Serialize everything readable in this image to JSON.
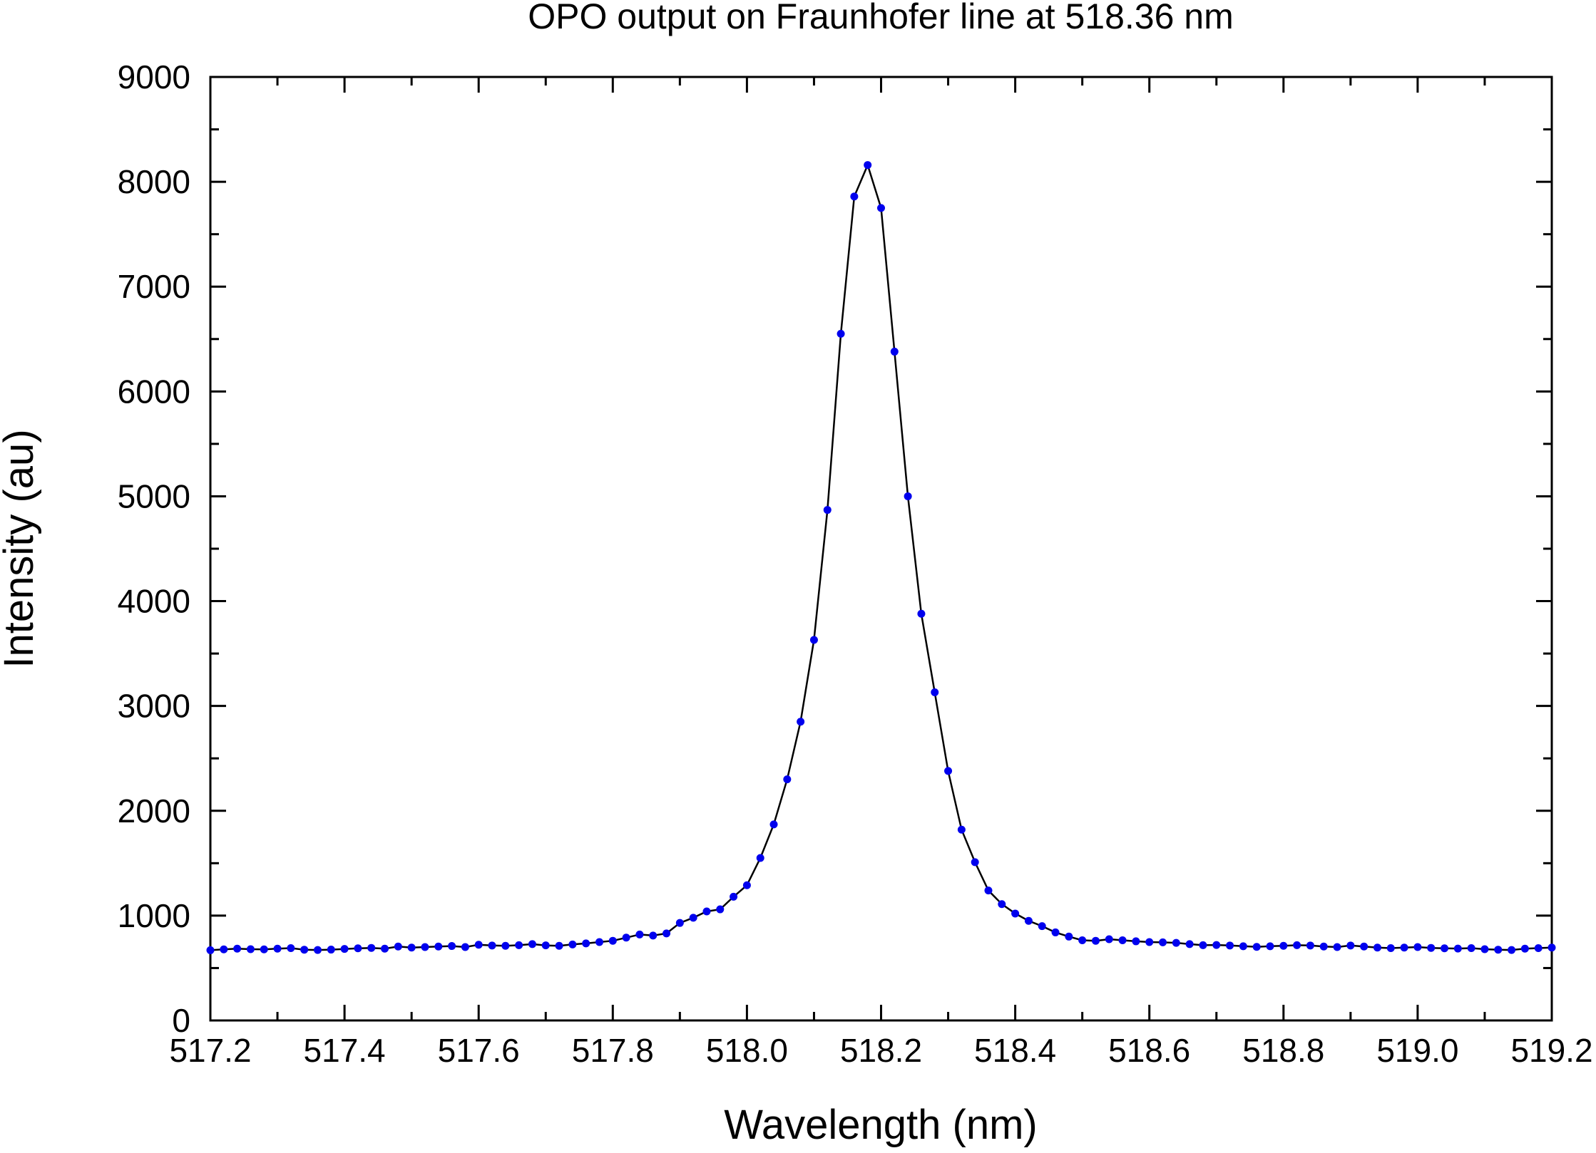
{
  "chart_data": {
    "type": "line",
    "title": "OPO output on Fraunhofer line at 518.36 nm",
    "xlabel": "Wavelength (nm)",
    "ylabel": "Intensity (au)",
    "xlim": [
      517.2,
      519.2
    ],
    "ylim": [
      0,
      9000
    ],
    "x_ticks": [
      "517.2",
      "517.4",
      "517.6",
      "517.8",
      "518.0",
      "518.2",
      "518.4",
      "518.6",
      "518.8",
      "519.0",
      "519.2"
    ],
    "y_ticks": [
      "0",
      "1000",
      "2000",
      "3000",
      "4000",
      "5000",
      "6000",
      "7000",
      "8000",
      "9000"
    ],
    "grid": false,
    "legend": "none",
    "series": [
      {
        "color": "#0000ee",
        "line_color": "#000000",
        "x": [
          517.2,
          517.22,
          517.24,
          517.26,
          517.28,
          517.3,
          517.32,
          517.34,
          517.36,
          517.38,
          517.4,
          517.42,
          517.44,
          517.46,
          517.48,
          517.5,
          517.52,
          517.54,
          517.56,
          517.58,
          517.6,
          517.62,
          517.64,
          517.66,
          517.68,
          517.7,
          517.72,
          517.74,
          517.76,
          517.78,
          517.8,
          517.82,
          517.84,
          517.86,
          517.88,
          517.9,
          517.92,
          517.94,
          517.96,
          517.98,
          518.0,
          518.02,
          518.04,
          518.06,
          518.08,
          518.1,
          518.12,
          518.14,
          518.16,
          518.18,
          518.2,
          518.22,
          518.24,
          518.26,
          518.28,
          518.3,
          518.32,
          518.34,
          518.36,
          518.38,
          518.4,
          518.42,
          518.44,
          518.46,
          518.48,
          518.5,
          518.52,
          518.54,
          518.56,
          518.58,
          518.6,
          518.62,
          518.64,
          518.66,
          518.68,
          518.7,
          518.72,
          518.74,
          518.76,
          518.78,
          518.8,
          518.82,
          518.84,
          518.86,
          518.88,
          518.9,
          518.92,
          518.94,
          518.96,
          518.98,
          519.0,
          519.02,
          519.04,
          519.06,
          519.08,
          519.1,
          519.12,
          519.14,
          519.16,
          519.18,
          519.2
        ],
        "y": [
          670,
          678,
          685,
          680,
          678,
          685,
          690,
          675,
          672,
          676,
          682,
          688,
          692,
          685,
          705,
          695,
          700,
          705,
          710,
          700,
          722,
          715,
          712,
          718,
          728,
          716,
          712,
          725,
          735,
          748,
          760,
          790,
          820,
          810,
          830,
          930,
          980,
          1040,
          1060,
          1180,
          1290,
          1550,
          1870,
          2300,
          2850,
          3630,
          4870,
          6550,
          7860,
          8160,
          7750,
          6380,
          5000,
          3880,
          3130,
          2380,
          1820,
          1510,
          1240,
          1110,
          1020,
          950,
          900,
          840,
          800,
          765,
          760,
          775,
          765,
          755,
          748,
          745,
          740,
          728,
          718,
          720,
          715,
          708,
          702,
          708,
          712,
          718,
          715,
          705,
          700,
          715,
          705,
          695,
          690,
          695,
          700,
          692,
          688,
          686,
          690,
          680,
          675,
          672,
          685,
          690,
          695
        ]
      }
    ]
  }
}
